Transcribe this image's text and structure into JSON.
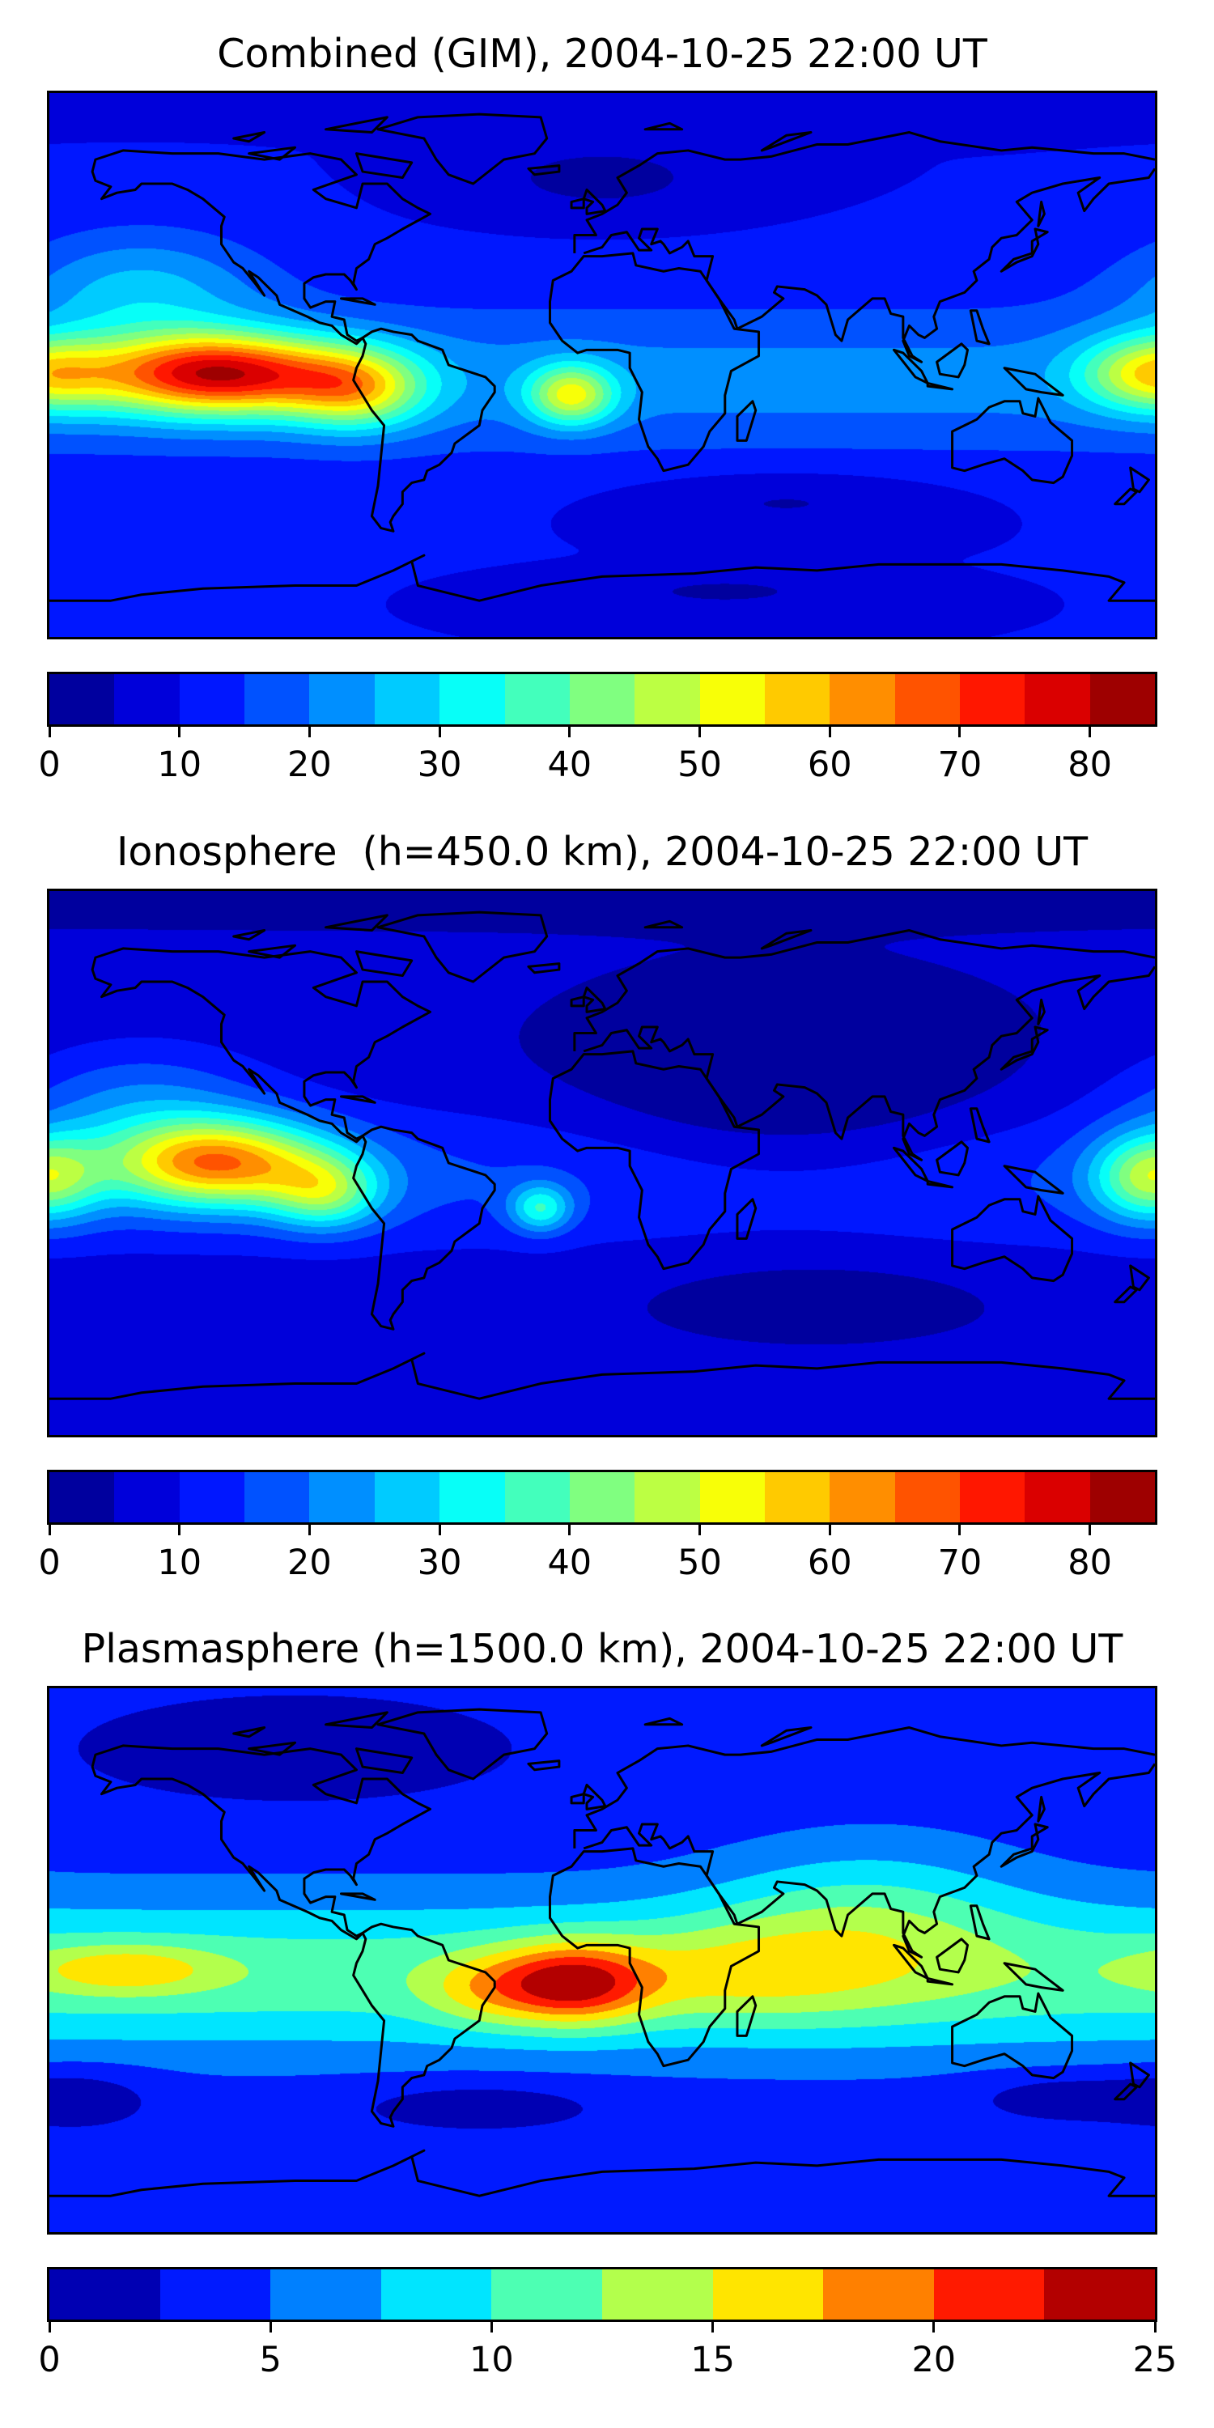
{
  "chart_data": [
    {
      "type": "heatmap",
      "title": "Combined (GIM), 2004-10-25 22:00 UT",
      "colormap": "jet",
      "projection": "plate-carree",
      "lon_range": [
        -180,
        180
      ],
      "lat_range": [
        -90,
        90
      ],
      "levels": {
        "min": 0,
        "max": 85,
        "step": 5
      },
      "colorbar_ticks": [
        "0",
        "10",
        "20",
        "30",
        "40",
        "50",
        "60",
        "70",
        "80"
      ],
      "features": {
        "max_value_approx": 82,
        "max_location": "equatorial Pacific, west of South America",
        "secondary_max_approx": 55,
        "secondary_location": "equatorial Atlantic"
      }
    },
    {
      "type": "heatmap",
      "title": "Ionosphere  (h=450.0 km), 2004-10-25 22:00 UT",
      "colormap": "jet",
      "projection": "plate-carree",
      "lon_range": [
        -180,
        180
      ],
      "lat_range": [
        -90,
        90
      ],
      "levels": {
        "min": 0,
        "max": 85,
        "step": 5
      },
      "colorbar_ticks": [
        "0",
        "10",
        "20",
        "30",
        "40",
        "50",
        "60",
        "70",
        "80"
      ],
      "features": {
        "max_value_approx": 67,
        "max_location": "equatorial Pacific",
        "secondary_max_approx": 40,
        "secondary_location": "equatorial Atlantic"
      }
    },
    {
      "type": "heatmap",
      "title": "Plasmasphere (h=1500.0 km), 2004-10-25 22:00 UT",
      "colormap": "jet",
      "projection": "plate-carree",
      "lon_range": [
        -180,
        180
      ],
      "lat_range": [
        -90,
        90
      ],
      "levels": {
        "min": 0,
        "max": 25,
        "step": 2.5
      },
      "colorbar_ticks": [
        "0",
        "5",
        "10",
        "15",
        "20",
        "25"
      ],
      "features": {
        "max_value_approx": 24,
        "max_location": "tropical South Atlantic / eastern Brazil",
        "secondary_max_approx": 19,
        "secondary_location": "central Pacific"
      }
    }
  ]
}
